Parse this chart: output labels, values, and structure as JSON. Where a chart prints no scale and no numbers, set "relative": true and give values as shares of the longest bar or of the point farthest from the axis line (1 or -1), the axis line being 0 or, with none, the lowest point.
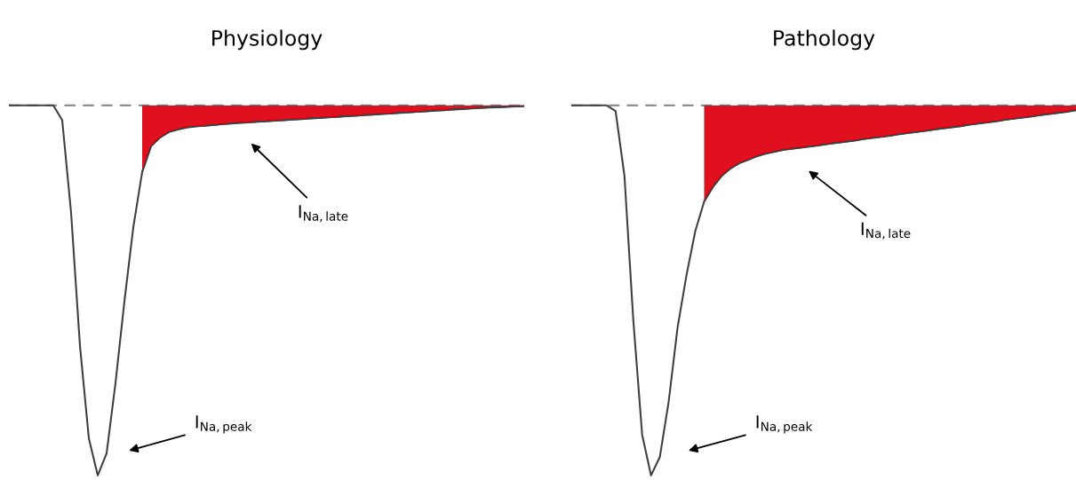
{
  "chart_data": [
    {
      "type": "line",
      "title": "Physiology",
      "relative": true,
      "legend": false,
      "categories": [
        null,
        null,
        null,
        null,
        null,
        null,
        null,
        null,
        null,
        null,
        null,
        null,
        null,
        null,
        null,
        null,
        null,
        null,
        null,
        null,
        null,
        null,
        null,
        null,
        null,
        null,
        null,
        null,
        null,
        null,
        null,
        null,
        null,
        null,
        null,
        null,
        null,
        null,
        null,
        null,
        null,
        null,
        null,
        null,
        null,
        null,
        null,
        null,
        null,
        null,
        null,
        null,
        null,
        null,
        null,
        null,
        null,
        null,
        null
      ],
      "series": [
        {
          "color": "#404040",
          "values": [
            0,
            0,
            0,
            0,
            0,
            0,
            -0.04,
            -0.29,
            -0.65,
            -0.9,
            -1,
            -0.94,
            -0.75,
            -0.53,
            -0.33,
            -0.18,
            -0.11,
            -0.087,
            -0.072,
            -0.065,
            -0.06,
            -0.057,
            -0.055,
            -0.053,
            -0.051,
            -0.049,
            -0.047,
            -0.046,
            -0.044,
            -0.043,
            -0.041,
            -0.04,
            -0.038,
            -0.037,
            -0.035,
            -0.034,
            -0.032,
            -0.031,
            -0.029,
            -0.028,
            -0.026,
            -0.025,
            -0.023,
            -0.022,
            -0.02,
            -0.019,
            -0.017,
            -0.016,
            -0.014,
            -0.013,
            -0.011,
            -0.01,
            -0.008,
            -0.007,
            -0.006,
            -0.005,
            -0.004,
            -0.003,
            -0.002
          ]
        },
        {
          "type": "area",
          "color": "#e0101e",
          "values": [
            null,
            null,
            null,
            null,
            null,
            null,
            null,
            null,
            null,
            null,
            null,
            null,
            null,
            null,
            null,
            -0.18,
            -0.11,
            -0.087,
            -0.072,
            -0.065,
            -0.06,
            -0.057,
            -0.055,
            -0.053,
            -0.051,
            -0.049,
            -0.047,
            -0.046,
            -0.044,
            -0.043,
            -0.041,
            -0.04,
            -0.038,
            -0.037,
            -0.035,
            -0.034,
            -0.032,
            -0.031,
            -0.029,
            -0.028,
            -0.026,
            -0.025,
            -0.023,
            -0.022,
            -0.02,
            -0.019,
            -0.017,
            -0.016,
            -0.014,
            -0.013,
            -0.011,
            -0.01,
            -0.008,
            -0.007,
            -0.006,
            -0.005,
            -0.004,
            -0.003,
            -0.002
          ]
        }
      ],
      "ref_lines": [
        {
          "axis": "y",
          "value": 0,
          "color": "#808080",
          "line_style": "dashed"
        }
      ],
      "annotations": [
        "I$_{Na,late}$",
        "I$_{Na,peak}$"
      ]
    },
    {
      "type": "line",
      "title": "Pathology",
      "relative": true,
      "legend": false,
      "categories": [
        null,
        null,
        null,
        null,
        null,
        null,
        null,
        null,
        null,
        null,
        null,
        null,
        null,
        null,
        null,
        null,
        null,
        null,
        null,
        null,
        null,
        null,
        null,
        null,
        null,
        null,
        null,
        null,
        null,
        null,
        null,
        null,
        null,
        null,
        null,
        null,
        null,
        null,
        null,
        null,
        null,
        null,
        null,
        null,
        null,
        null,
        null,
        null,
        null,
        null,
        null,
        null,
        null,
        null,
        null,
        null,
        null,
        null
      ],
      "series": [
        {
          "color": "#404040",
          "values": [
            0,
            0,
            0,
            0,
            0,
            -0.015,
            -0.19,
            -0.58,
            -0.89,
            -1,
            -0.95,
            -0.8,
            -0.6,
            -0.46,
            -0.34,
            -0.26,
            -0.22,
            -0.19,
            -0.17,
            -0.156,
            -0.147,
            -0.137,
            -0.13,
            -0.125,
            -0.12,
            -0.117,
            -0.114,
            -0.111,
            -0.108,
            -0.104,
            -0.101,
            -0.098,
            -0.095,
            -0.091,
            -0.088,
            -0.085,
            -0.082,
            -0.078,
            -0.075,
            -0.072,
            -0.069,
            -0.065,
            -0.062,
            -0.059,
            -0.056,
            -0.052,
            -0.049,
            -0.046,
            -0.043,
            -0.039,
            -0.036,
            -0.033,
            -0.03,
            -0.026,
            -0.023,
            -0.02,
            -0.017,
            -0.013
          ]
        },
        {
          "type": "area",
          "color": "#e0101e",
          "values": [
            null,
            null,
            null,
            null,
            null,
            null,
            null,
            null,
            null,
            null,
            null,
            null,
            null,
            null,
            null,
            -0.26,
            -0.22,
            -0.19,
            -0.17,
            -0.156,
            -0.147,
            -0.137,
            -0.13,
            -0.125,
            -0.12,
            -0.117,
            -0.114,
            -0.111,
            -0.108,
            -0.104,
            -0.101,
            -0.098,
            -0.095,
            -0.091,
            -0.088,
            -0.085,
            -0.082,
            -0.078,
            -0.075,
            -0.072,
            -0.069,
            -0.065,
            -0.062,
            -0.059,
            -0.056,
            -0.052,
            -0.049,
            -0.046,
            -0.043,
            -0.039,
            -0.036,
            -0.033,
            -0.03,
            -0.026,
            -0.023,
            -0.02,
            -0.017,
            -0.013
          ]
        }
      ],
      "ref_lines": [
        {
          "axis": "y",
          "value": 0,
          "color": "#808080",
          "line_style": "dashed"
        }
      ],
      "annotations": [
        "I$_{Na,late}$",
        "I$_{Na,peak}$"
      ]
    }
  ]
}
